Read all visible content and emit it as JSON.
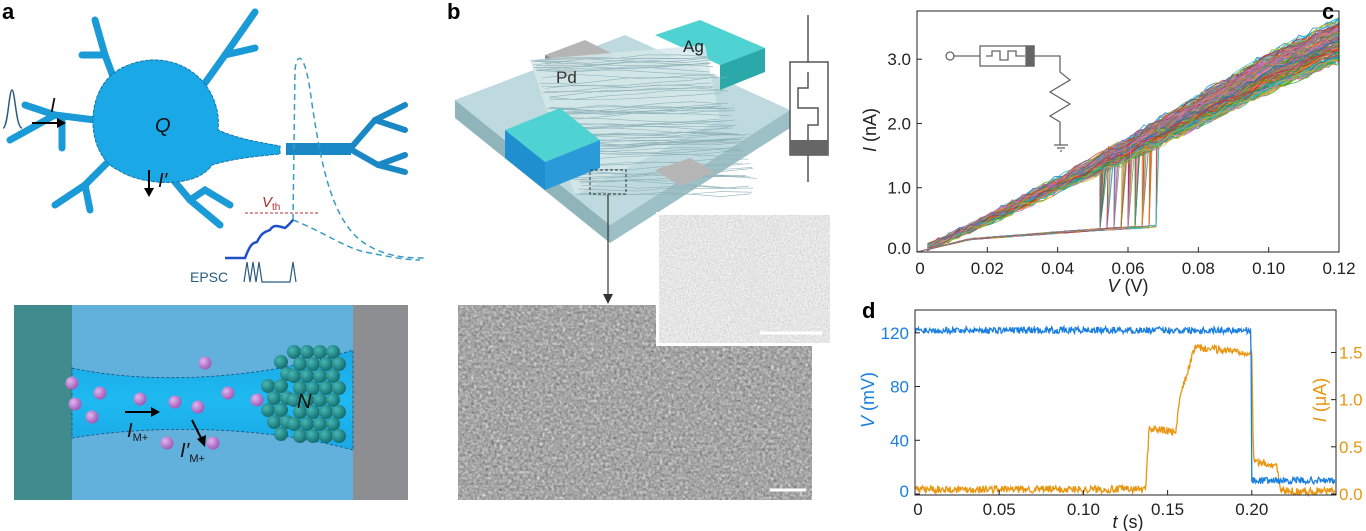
{
  "figure": {
    "panel_labels": [
      "a",
      "b",
      "c",
      "d"
    ],
    "panel_a": {
      "input_current": "I",
      "charge": "Q",
      "leak_current": "I′",
      "threshold_main": "V",
      "threshold_sub": "th",
      "epsc": "EPSC",
      "ion_current_main": "I",
      "ion_current_sub": "M+",
      "ion_leak_main": "I′",
      "ion_leak_sub": "M+",
      "nucleus": "N",
      "colors": {
        "neuron": "#1aa3e0",
        "ion": "#b36fc6",
        "cluster": "#1f8f8f",
        "left_electrode": "#3f8b8e",
        "right_electrode": "#8c8e91",
        "threshold": "#b03030",
        "epsc": "#1f4fc9"
      }
    },
    "panel_b": {
      "electrode_left": "Pd",
      "electrode_right": "Ag",
      "colors": {
        "ag": "#39c6c8",
        "pd": "#9a9a9a",
        "substrate": "#a9cbd0"
      }
    }
  },
  "chart_data": [
    {
      "type": "line",
      "panel": "c",
      "xlabel_main": "V",
      "xlabel_unit": "(V)",
      "ylabel_main": "I",
      "ylabel_unit": "(nA)",
      "xlim": [
        0,
        0.12
      ],
      "ylim": [
        0,
        3.75
      ],
      "xticks": [
        "0",
        "0.02",
        "0.04",
        "0.06",
        "0.08",
        "0.10",
        "0.12"
      ],
      "xtick_values": [
        0,
        0.02,
        0.04,
        0.06,
        0.08,
        0.1,
        0.12
      ],
      "yticks": [
        "0.0",
        "1.0",
        "2.0",
        "3.0"
      ],
      "ytick_values": [
        0,
        1,
        2,
        3
      ],
      "description_of_sweeps": "many overlaid cycles, multicolor",
      "low_state": {
        "x": [
          0,
          0.015,
          0.052,
          0.068
        ],
        "y": [
          0,
          0.2,
          0.35,
          0.4
        ]
      },
      "switch_voltage_range": [
        0.052,
        0.069
      ],
      "high_state": {
        "x": [
          0,
          0.02,
          0.06,
          0.1,
          0.12
        ],
        "y": [
          0,
          0.5,
          1.6,
          2.8,
          3.3
        ]
      },
      "inset": "threshold switch in series with resistor to ground",
      "grid": false
    },
    {
      "type": "line",
      "panel": "d",
      "xlabel_main": "t",
      "xlabel_unit": "(s)",
      "ylabel_left_main": "V",
      "ylabel_left_unit": "(mV)",
      "ylabel_right_main": "I",
      "ylabel_right_unit": "(μA)",
      "xlim": [
        0,
        0.25
      ],
      "ylim_left": [
        0,
        137
      ],
      "ylim_right": [
        0,
        1.95
      ],
      "xticks": [
        "0",
        "0.05",
        "0.10",
        "0.15",
        "0.20"
      ],
      "xtick_values": [
        0,
        0.05,
        0.1,
        0.15,
        0.2
      ],
      "yticks_left": [
        "0",
        "40",
        "80",
        "120"
      ],
      "ytick_left_values": [
        0,
        40,
        80,
        120
      ],
      "yticks_right": [
        "0.0",
        "0.5",
        "1.0",
        "1.5"
      ],
      "ytick_right_values": [
        0,
        0.5,
        1.0,
        1.5
      ],
      "series": [
        {
          "axis": "left",
          "color": "#1a7fe0",
          "t": [
            0,
            0.1995,
            0.2,
            0.25
          ],
          "values": [
            122,
            122,
            10,
            10
          ]
        },
        {
          "axis": "right",
          "color": "#e8960f",
          "t": [
            0,
            0.137,
            0.139,
            0.155,
            0.157,
            0.166,
            0.2,
            0.201,
            0.215,
            0.217,
            0.25
          ],
          "values": [
            0.05,
            0.05,
            0.7,
            0.65,
            1.0,
            1.55,
            1.5,
            0.35,
            0.3,
            0.03,
            0.03
          ]
        }
      ],
      "grid": false
    }
  ]
}
